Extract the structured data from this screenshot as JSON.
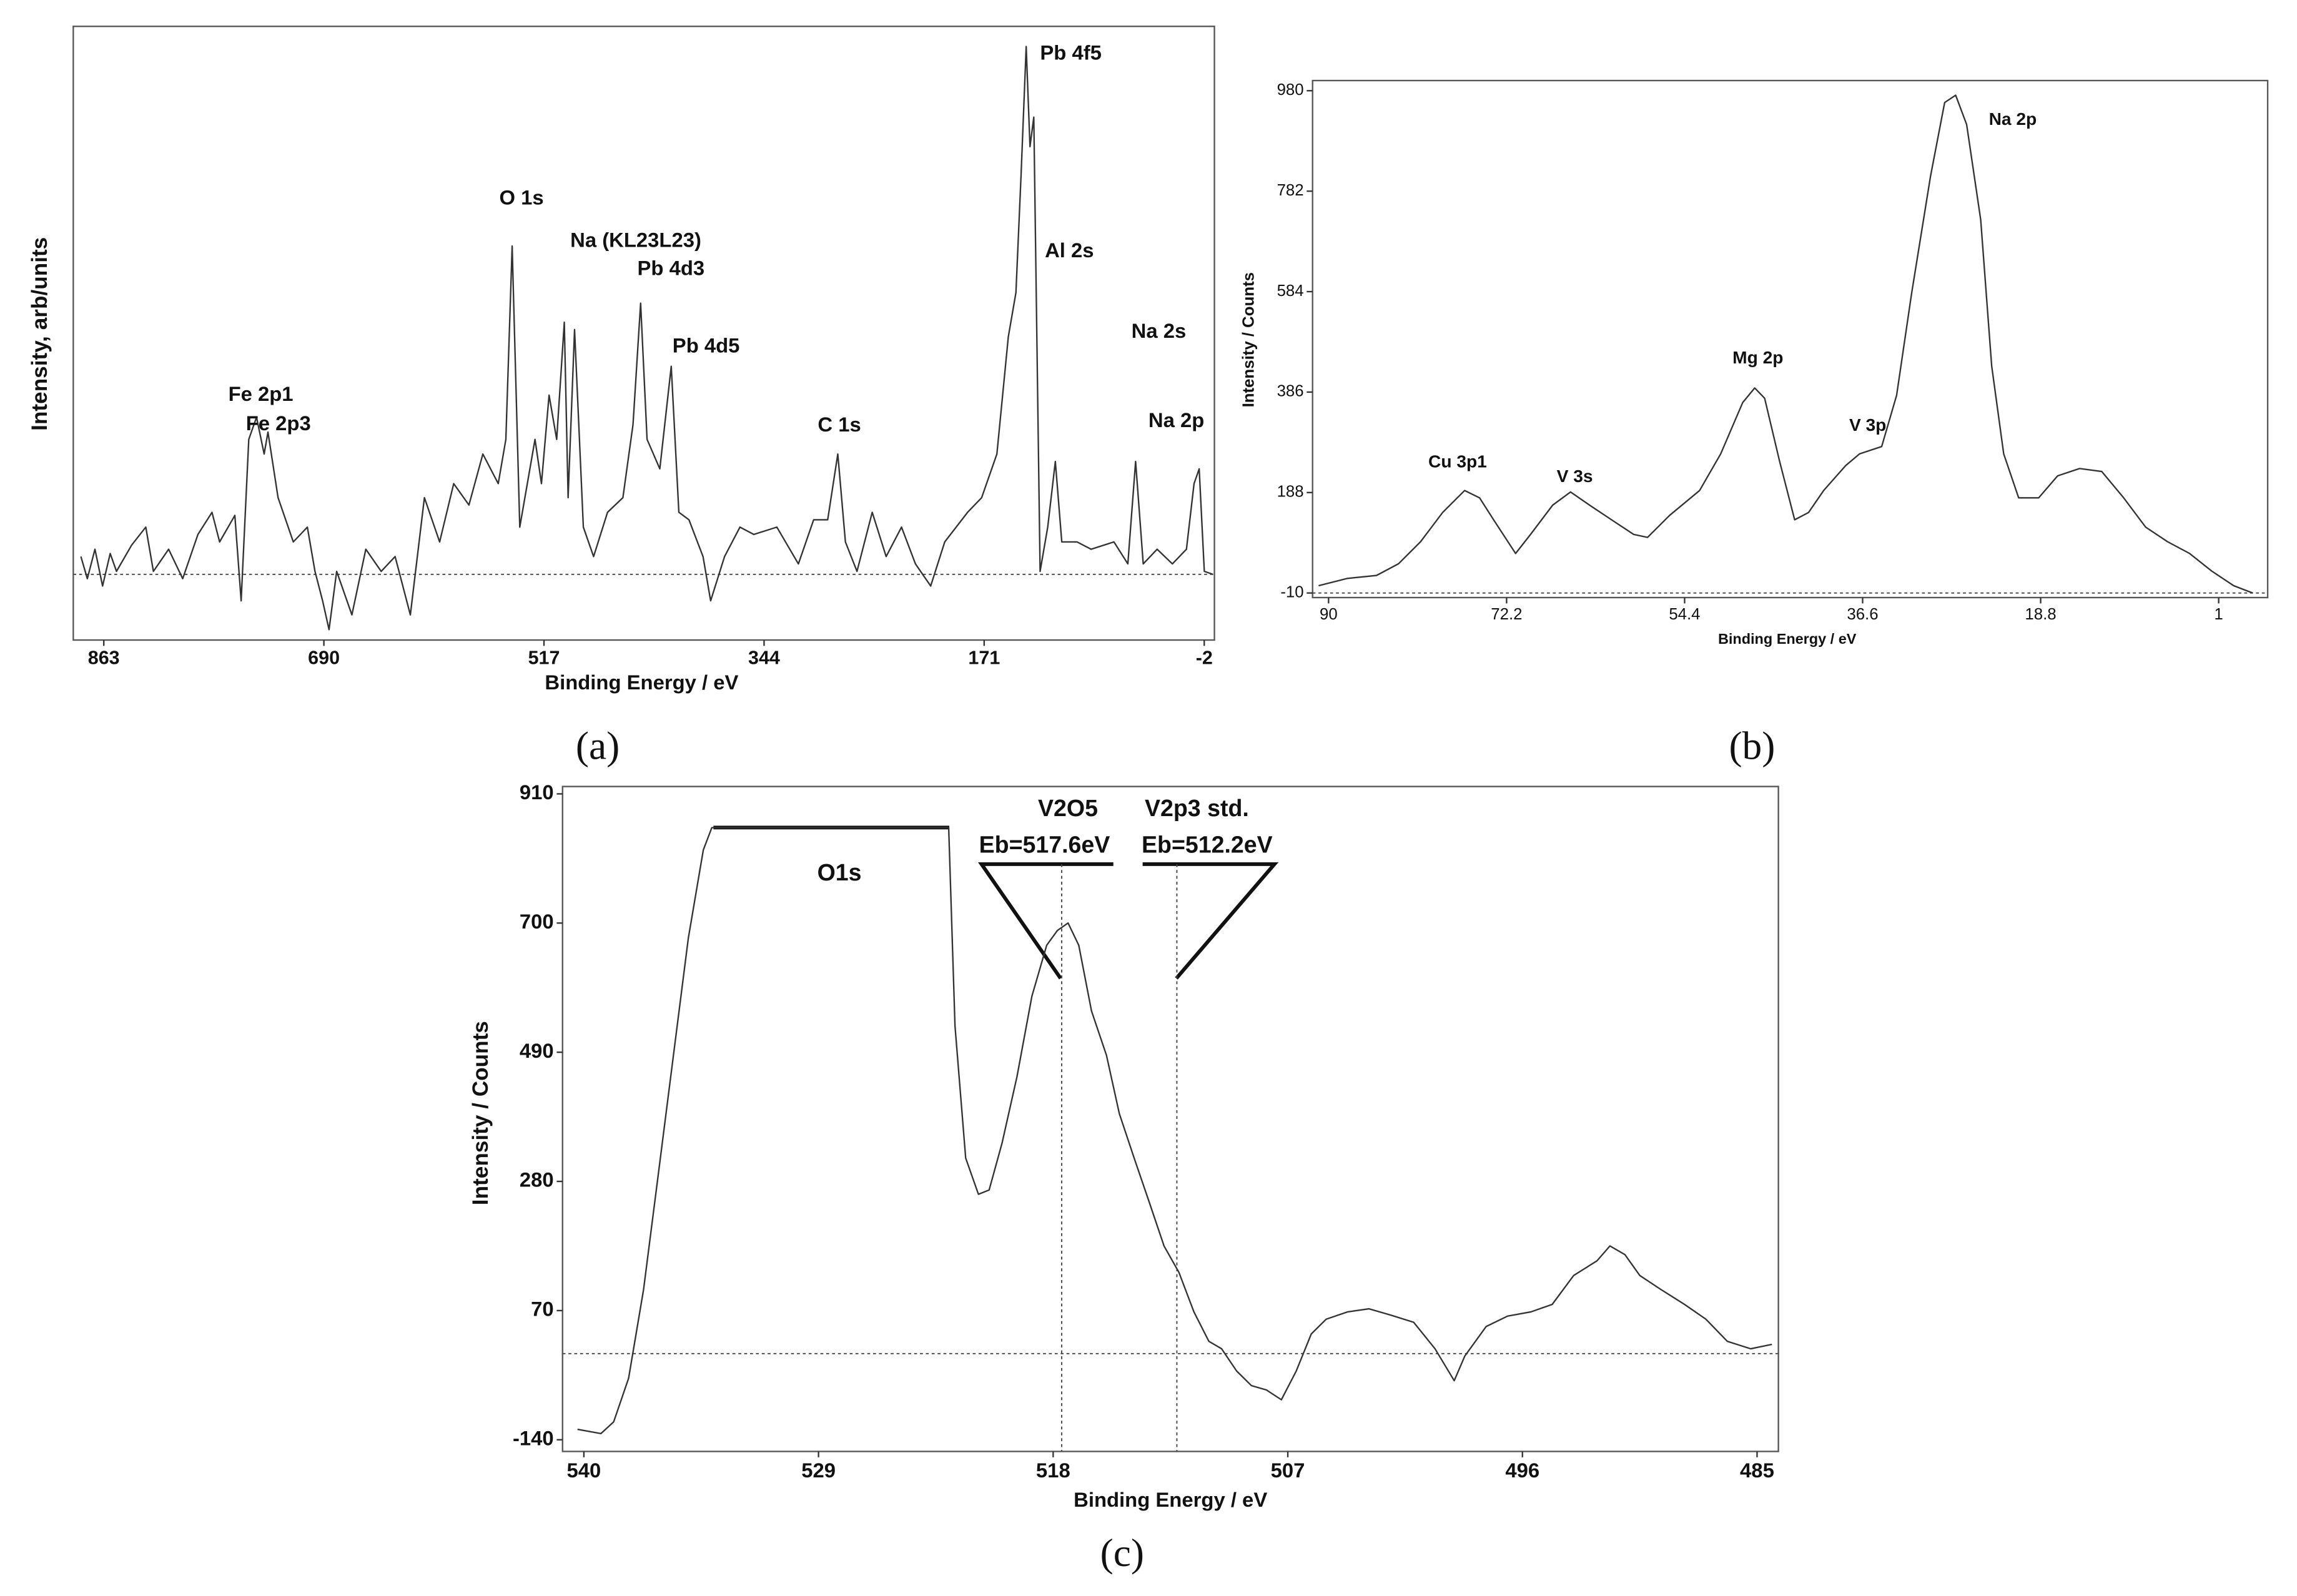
{
  "chart_data": [
    {
      "type": "line",
      "panel_label": "(a)",
      "x_label": "Binding Energy / eV",
      "y_label": "Intensity, arb/units",
      "xlim": [
        887,
        -10
      ],
      "ylim": [
        0,
        100
      ],
      "xticks": [
        863,
        690,
        517,
        344,
        171,
        -2
      ],
      "color": "#333333",
      "x": [
        881,
        876,
        870,
        864,
        858,
        853,
        841,
        830,
        824,
        812,
        801,
        789,
        778,
        772,
        760,
        755,
        749,
        743,
        737,
        734,
        726,
        714,
        703,
        697,
        691,
        686,
        680,
        668,
        657,
        645,
        634,
        622,
        611,
        599,
        588,
        576,
        565,
        553,
        547,
        542,
        536,
        524,
        519,
        513,
        507,
        501,
        498,
        493,
        486,
        478,
        467,
        455,
        447,
        441,
        436,
        426,
        417,
        411,
        403,
        392,
        386,
        375,
        363,
        352,
        334,
        317,
        305,
        294,
        286,
        280,
        271,
        259,
        248,
        236,
        225,
        213,
        202,
        184,
        173,
        161,
        152,
        146,
        142,
        138,
        135,
        132,
        127,
        121,
        115,
        110,
        98,
        87,
        69,
        58,
        52,
        46,
        35,
        23,
        12,
        6,
        2,
        -2,
        -9
      ],
      "values": [
        13.6,
        10.0,
        14.8,
        8.8,
        14.1,
        11.2,
        15.5,
        18.4,
        11.2,
        14.8,
        10.0,
        17.2,
        20.8,
        16.0,
        20.3,
        6.4,
        32.7,
        36.3,
        30.3,
        33.9,
        23.2,
        16.0,
        18.4,
        11.2,
        6.4,
        1.7,
        11.2,
        4.1,
        14.8,
        11.2,
        13.6,
        4.1,
        23.2,
        16.0,
        25.5,
        22.0,
        30.3,
        25.5,
        32.7,
        64.2,
        18.4,
        32.7,
        25.5,
        39.9,
        32.7,
        51.8,
        23.2,
        50.6,
        18.4,
        13.6,
        20.8,
        23.2,
        35.1,
        54.9,
        32.7,
        27.9,
        44.6,
        20.8,
        19.6,
        13.6,
        6.4,
        13.6,
        18.4,
        17.2,
        18.4,
        12.4,
        19.6,
        19.6,
        30.3,
        16.0,
        11.2,
        20.8,
        13.6,
        18.4,
        12.4,
        8.8,
        16.0,
        20.8,
        23.2,
        30.3,
        49.4,
        56.6,
        75.7,
        96.7,
        80.4,
        85.2,
        11.2,
        18.4,
        29.1,
        16.0,
        16.0,
        14.8,
        16.0,
        12.4,
        29.1,
        12.4,
        14.8,
        12.4,
        14.8,
        25.5,
        27.9,
        11.2,
        10.7
      ],
      "hlines": [
        10.7
      ],
      "annotations": [
        "Fe 2p1",
        "Fe 2p3",
        "O 1s",
        "Na (KL23L23)",
        "Pb 4d3",
        "Pb 4d5",
        "C 1s",
        "Pb 4f5",
        "Al 2s",
        "Na 2s",
        "Na 2p"
      ]
    },
    {
      "type": "line",
      "panel_label": "(b)",
      "x_label": "Binding Energy / eV",
      "y_label": "Intensity / Counts",
      "xlim": [
        91.6,
        -3.9
      ],
      "ylim": [
        -19,
        1000
      ],
      "xticks": [
        90,
        72.2,
        54.4,
        36.6,
        18.8,
        1
      ],
      "yticks": [
        -10,
        188,
        386,
        584,
        782,
        980
      ],
      "color": "#333333",
      "x": [
        91.0,
        88.1,
        85.2,
        83.0,
        80.8,
        78.6,
        76.4,
        74.9,
        73.5,
        71.3,
        69.8,
        67.6,
        65.8,
        63.9,
        61.7,
        59.5,
        58.1,
        55.9,
        52.9,
        50.8,
        48.6,
        47.4,
        46.4,
        44.9,
        43.4,
        42.0,
        40.5,
        38.3,
        36.9,
        34.7,
        33.2,
        31.7,
        29.8,
        28.4,
        27.3,
        26.2,
        24.8,
        23.7,
        22.5,
        21.0,
        19.0,
        17.1,
        14.9,
        12.7,
        10.5,
        8.3,
        6.1,
        3.9,
        1.7,
        -0.5,
        -2.4
      ],
      "values": [
        4.4,
        18.9,
        24.6,
        47.7,
        91.0,
        148.7,
        192,
        177.6,
        134.3,
        67.9,
        105.4,
        163.2,
        189.1,
        163.2,
        134.3,
        105.4,
        99.7,
        143,
        192,
        264.2,
        365.2,
        394,
        373.8,
        249.7,
        134.3,
        148.7,
        192,
        241,
        264.2,
        278.6,
        379.6,
        581.6,
        812.5,
        956.8,
        971.2,
        913.5,
        725.9,
        437.3,
        264.2,
        177.6,
        177.6,
        220.9,
        235.3,
        229.5,
        177.6,
        119.9,
        91,
        67.9,
        33.3,
        4.4,
        -10
      ],
      "hlines": [
        -10
      ],
      "annotations": [
        "Na 2p",
        "Mg 2p",
        "V 3p",
        "Cu 3p1",
        "V 3s"
      ]
    },
    {
      "type": "line",
      "panel_label": "(c)",
      "x_label": "Binding Energy / eV",
      "y_label": "Intensity / Counts",
      "xlim": [
        541.0,
        484.0
      ],
      "ylim": [
        -159,
        922
      ],
      "xticks": [
        540,
        529,
        518,
        507,
        496,
        485
      ],
      "yticks": [
        -140,
        70,
        280,
        490,
        700,
        910
      ],
      "color": "#333333",
      "x": [
        540.3,
        539.2,
        538.6,
        537.9,
        537.2,
        536.5,
        535.8,
        535.1,
        534.4,
        534.0,
        522.9,
        522.6,
        522.1,
        521.5,
        521.0,
        520.4,
        519.7,
        519.0,
        518.3,
        517.8,
        517.3,
        516.8,
        516.2,
        515.5,
        514.9,
        514.2,
        513.5,
        512.8,
        512.1,
        511.4,
        510.7,
        510.1,
        509.4,
        508.7,
        508.0,
        507.3,
        506.6,
        505.9,
        505.2,
        504.2,
        503.2,
        502.2,
        501.1,
        500.1,
        499.2,
        498.7,
        497.7,
        496.7,
        495.6,
        494.6,
        493.6,
        492.5,
        491.9,
        491.2,
        490.5,
        489.5,
        488.4,
        487.4,
        486.4,
        485.3,
        484.3
      ],
      "values": [
        -123,
        -130,
        -111,
        -40,
        104,
        294,
        485,
        676,
        819,
        855,
        855,
        533,
        318,
        259,
        266,
        342,
        450,
        581,
        664,
        688,
        700,
        664,
        557,
        485,
        390,
        318,
        247,
        175,
        132,
        68,
        20,
        8,
        -28,
        -52,
        -59,
        -75,
        -28,
        32,
        56,
        68,
        73,
        63,
        51,
        8,
        -44,
        -4,
        44,
        61,
        68,
        80,
        127,
        151,
        175,
        161,
        127,
        104,
        80,
        56,
        20,
        8,
        15
      ],
      "hlines": [
        0
      ],
      "vlines": [
        517.6,
        512.2
      ],
      "annotations": [
        "O1s",
        "V2O5",
        "Eb=517.6eV",
        "V2p3 std.",
        "Eb=512.2eV"
      ]
    }
  ]
}
